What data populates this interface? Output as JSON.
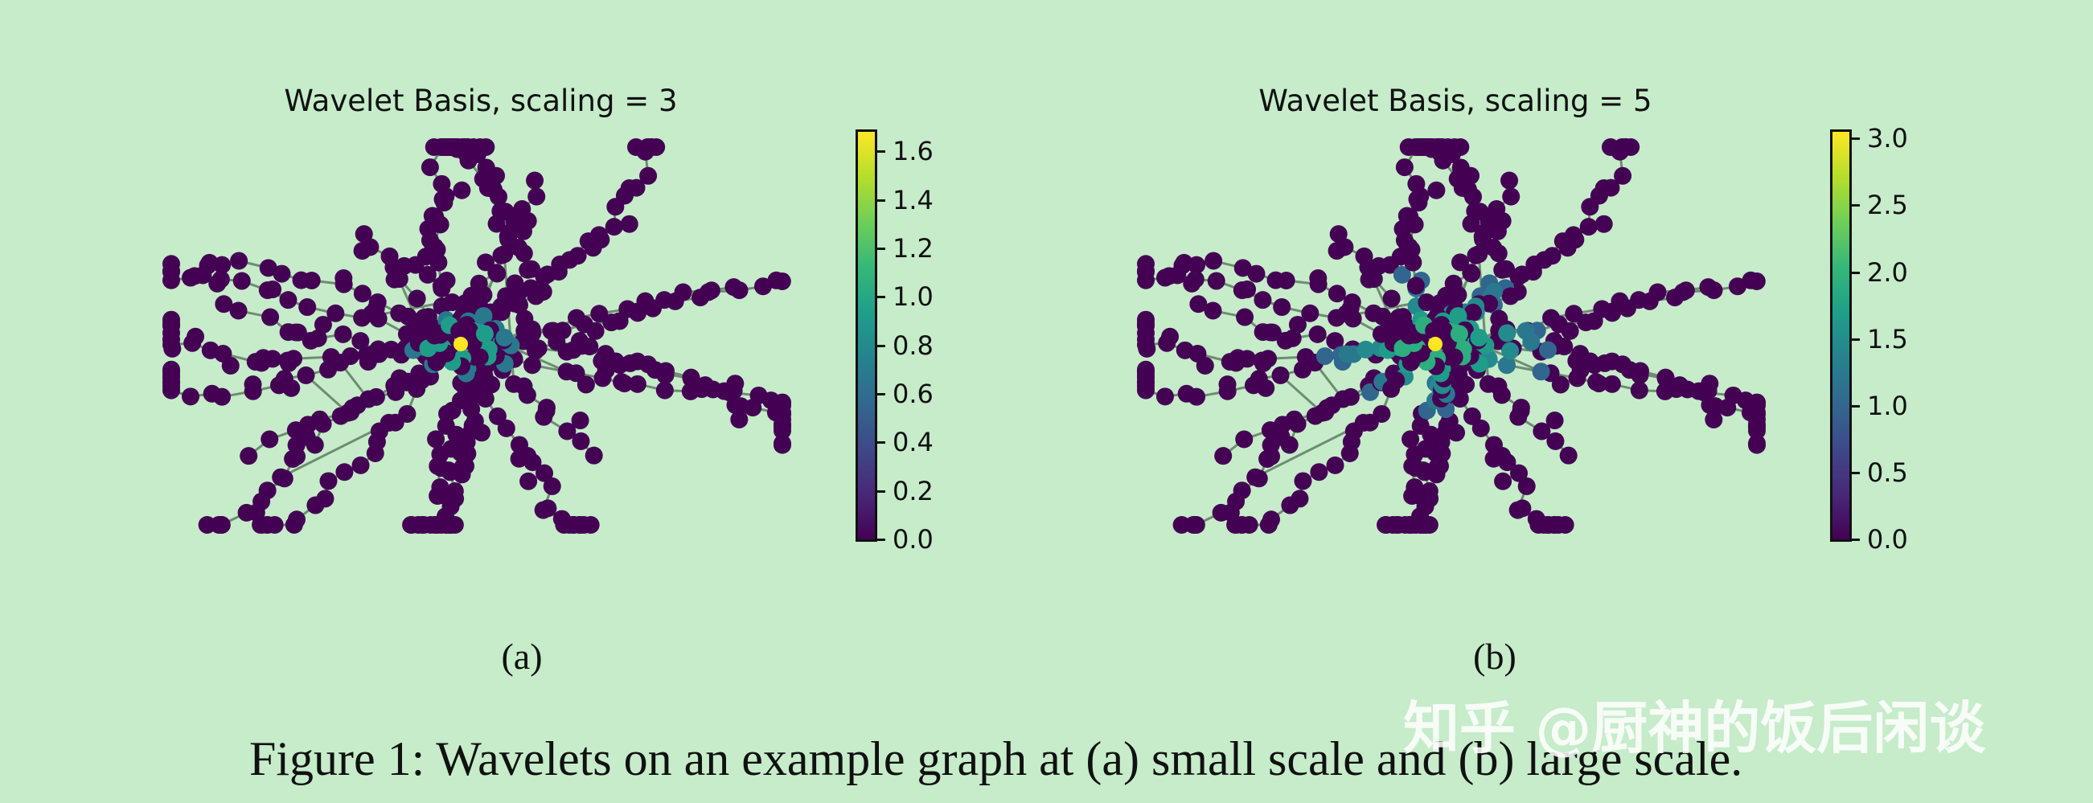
{
  "chart_data": [
    {
      "type": "scatter",
      "subtype": "network-graph",
      "title": "Wavelet Basis, scaling = 3",
      "colormap": "viridis",
      "colorbar": {
        "min": 0.0,
        "max": 1.68,
        "ticks": [
          "0.0",
          "0.2",
          "0.4",
          "0.6",
          "0.8",
          "1.0",
          "1.2",
          "1.4",
          "1.6"
        ]
      },
      "center_node_value": 1.68,
      "background_node_value": 0.0,
      "grid": false,
      "axes": false
    },
    {
      "type": "scatter",
      "subtype": "network-graph",
      "title": "Wavelet Basis, scaling = 5",
      "colormap": "viridis",
      "colorbar": {
        "min": 0.0,
        "max": 3.05,
        "ticks": [
          "0.0",
          "0.5",
          "1.0",
          "1.5",
          "2.0",
          "2.5",
          "3.0"
        ]
      },
      "center_node_value": 3.05,
      "background_node_value": 0.0,
      "grid": false,
      "axes": false
    }
  ],
  "subfigures": {
    "a": "(a)",
    "b": "(b)"
  },
  "caption": "Figure 1: Wavelets on an example graph at (a) small scale and (b) large scale.",
  "watermark": "知乎 @厨神的饭后闲谈",
  "colors": {
    "background": "#c6ecca",
    "edge": "#6f8c72",
    "node_low": "#440154",
    "node_high": "#fde725"
  }
}
